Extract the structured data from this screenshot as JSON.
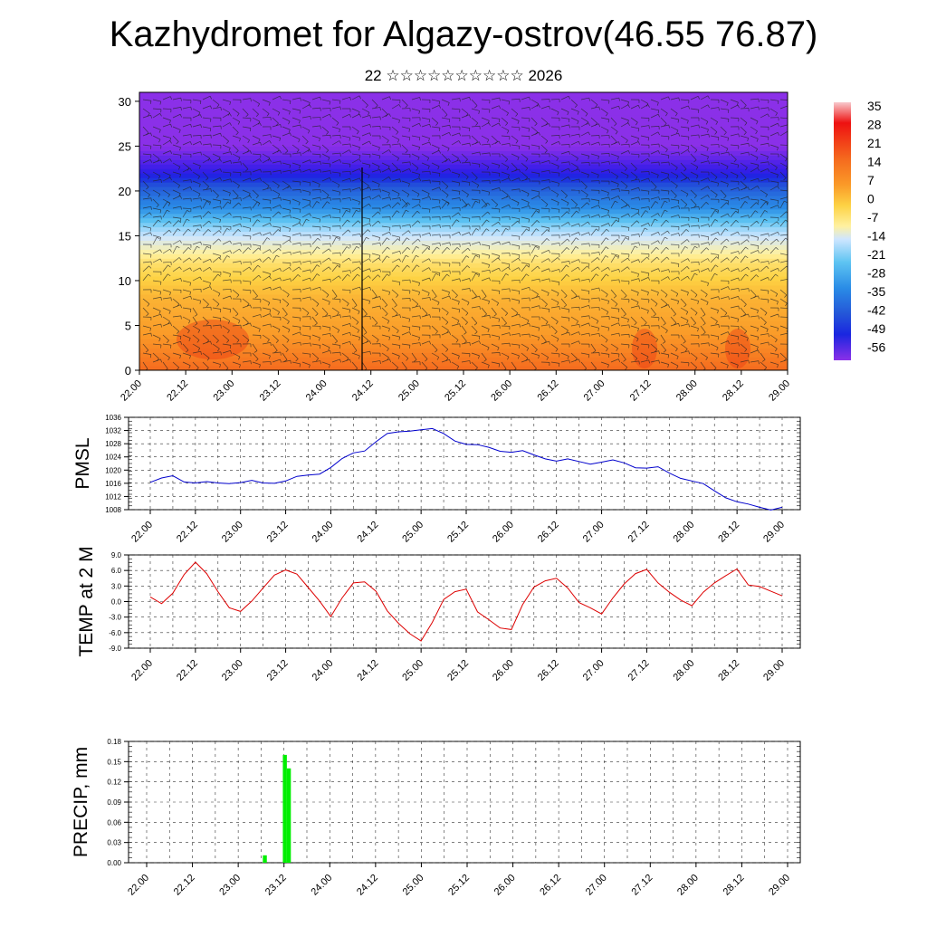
{
  "title": "Kazhydromet for Algazy-ostrov(46.55 76.87)",
  "subtitle": "22 ☆☆☆☆☆☆☆☆☆☆ 2026",
  "colors": {
    "pmsl_line": "#0000cc",
    "temp_line": "#dd0000",
    "precip_bar": "#00ee00",
    "axis": "#000000"
  },
  "time_ticks": [
    "22.00",
    "22.12",
    "23.00",
    "23.12",
    "24.00",
    "24.12",
    "25.00",
    "25.12",
    "26.00",
    "26.12",
    "27.00",
    "27.12",
    "28.00",
    "28.12",
    "29.00"
  ],
  "chart_data": [
    {
      "type": "heatmap",
      "title": "",
      "xlabel": "",
      "ylabel": "",
      "x_ticks": [
        "22.00",
        "22.12",
        "23.00",
        "23.12",
        "24.00",
        "24.12",
        "25.00",
        "25.12",
        "26.00",
        "26.12",
        "27.00",
        "27.12",
        "28.00",
        "28.12",
        "29.00"
      ],
      "y_ticks": [
        "0",
        "5",
        "10",
        "15",
        "20",
        "25",
        "30"
      ],
      "ylim": [
        0,
        31
      ],
      "overlay": "wind barbs",
      "colorbar": {
        "labels": [
          "35",
          "28",
          "21",
          "14",
          "7",
          "0",
          "-7",
          "-14",
          "-21",
          "-28",
          "-35",
          "-42",
          "-49",
          "-56"
        ],
        "colors": [
          "#f8c8cc",
          "#ee1111",
          "#f23a1a",
          "#f56a1e",
          "#fa9a28",
          "#fdd244",
          "#fff1a0",
          "#cfe6ff",
          "#5ec4f2",
          "#2a8ce6",
          "#2456d8",
          "#1a26e0",
          "#3a1de8",
          "#8b30e8"
        ]
      },
      "temperature_profile": {
        "heights": [
          0,
          4,
          8,
          12,
          16,
          19,
          21,
          22.5,
          25,
          31
        ],
        "values": [
          14,
          7,
          4,
          -3,
          -18,
          -32,
          -45,
          -56,
          -60,
          -60
        ]
      }
    },
    {
      "type": "line",
      "ylabel": "PMSL",
      "ylim": [
        1008,
        1036
      ],
      "y_ticks": [
        "1008",
        "1012",
        "1016",
        "1020",
        "1024",
        "1028",
        "1032",
        "1036"
      ],
      "grid": true,
      "series": [
        {
          "values": [
            1016.3,
            1017.6,
            1018.3,
            1016.4,
            1016.1,
            1016.5,
            1016.1,
            1015.9,
            1016.2,
            1016.9,
            1016.1,
            1016.0,
            1016.7,
            1018.1,
            1018.5,
            1018.8,
            1020.8,
            1023.5,
            1025.2,
            1025.8,
            1028.6,
            1031.1,
            1031.6,
            1031.8,
            1032.2,
            1032.6,
            1031.1,
            1028.8,
            1027.8,
            1027.7,
            1026.9,
            1025.7,
            1025.4,
            1025.9,
            1024.6,
            1023.4,
            1022.7,
            1023.4,
            1022.6,
            1021.8,
            1022.4,
            1023.1,
            1022.2,
            1020.7,
            1020.6,
            1021.0,
            1019.1,
            1017.5,
            1016.7,
            1015.9,
            1013.7,
            1011.6,
            1010.4,
            1009.7,
            1008.7,
            1007.9,
            1008.7
          ]
        }
      ]
    },
    {
      "type": "line",
      "ylabel": "TEMP at 2 M",
      "ylim": [
        -9,
        9
      ],
      "y_ticks": [
        "-9.0",
        "-6.0",
        "-3.0",
        "0.0",
        "3.0",
        "6.0",
        "9.0"
      ],
      "grid": true,
      "series": [
        {
          "values": [
            0.9,
            -0.4,
            1.6,
            5.2,
            7.6,
            5.4,
            1.9,
            -1.2,
            -1.9,
            0.1,
            2.6,
            5.1,
            6.1,
            5.3,
            2.7,
            0.1,
            -2.9,
            0.7,
            3.6,
            3.8,
            2.0,
            -1.8,
            -4.2,
            -6.2,
            -7.6,
            -4.0,
            0.4,
            1.9,
            2.4,
            -2.0,
            -3.5,
            -5.1,
            -5.4,
            -0.6,
            2.8,
            4.0,
            4.5,
            2.6,
            -0.2,
            -1.2,
            -2.4,
            0.7,
            3.4,
            5.4,
            6.2,
            3.6,
            1.8,
            0.3,
            -0.8,
            1.8,
            3.6,
            5.0,
            6.3,
            3.2,
            2.9,
            2.0,
            1.1
          ]
        }
      ]
    },
    {
      "type": "bar",
      "ylabel": "PRECIP, mm",
      "ylim": [
        0,
        0.18
      ],
      "y_ticks": [
        "0.00",
        "0.03",
        "0.06",
        "0.09",
        "0.12",
        "0.15",
        "0.18"
      ],
      "grid": true,
      "series": [
        {
          "values": [
            0,
            0,
            0,
            0,
            0,
            0,
            0,
            0,
            0,
            0,
            0,
            0,
            0,
            0,
            0,
            0,
            0,
            0,
            0,
            0,
            0,
            0,
            0,
            0,
            0,
            0,
            0,
            0,
            0,
            0.011,
            0,
            0,
            0,
            0,
            0.16,
            0.14,
            0,
            0,
            0,
            0,
            0,
            0,
            0,
            0,
            0,
            0,
            0,
            0,
            0,
            0,
            0,
            0,
            0,
            0,
            0,
            0,
            0,
            0,
            0,
            0,
            0,
            0,
            0,
            0,
            0,
            0,
            0,
            0,
            0,
            0,
            0,
            0,
            0,
            0,
            0,
            0,
            0,
            0,
            0,
            0,
            0,
            0,
            0,
            0,
            0,
            0,
            0,
            0,
            0,
            0,
            0,
            0,
            0,
            0,
            0,
            0,
            0,
            0,
            0,
            0,
            0,
            0,
            0,
            0,
            0,
            0,
            0,
            0,
            0,
            0,
            0,
            0,
            0,
            0,
            0,
            0,
            0,
            0,
            0,
            0,
            0,
            0,
            0,
            0,
            0,
            0,
            0,
            0,
            0,
            0,
            0,
            0,
            0,
            0,
            0,
            0,
            0,
            0,
            0,
            0,
            0,
            0,
            0,
            0,
            0,
            0,
            0,
            0,
            0,
            0,
            0,
            0,
            0,
            0,
            0,
            0,
            0,
            0,
            0,
            0,
            0
          ]
        }
      ]
    }
  ]
}
